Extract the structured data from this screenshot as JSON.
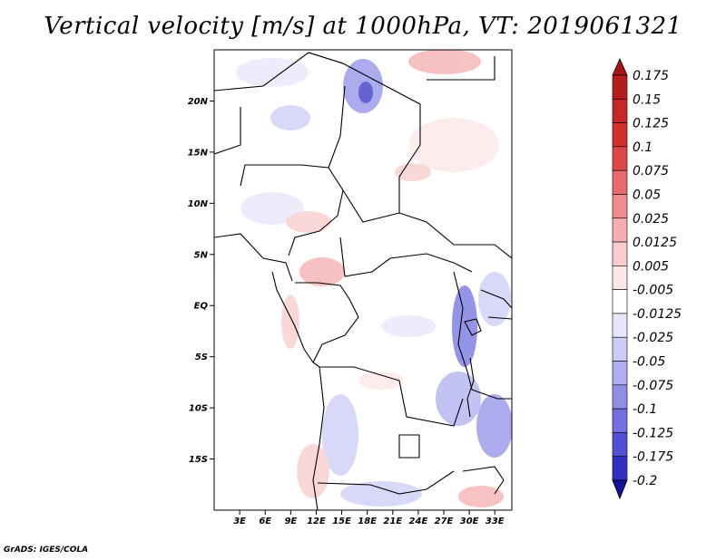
{
  "title": "Vertical velocity [m/s] at 1000hPa, VT: 2019061321",
  "footer": "GrADS: IGES/COLA",
  "map": {
    "lon_range": [
      0,
      35
    ],
    "lat_range": [
      -20,
      25
    ],
    "lat_ticks": [
      {
        "value": 20,
        "label": "20N"
      },
      {
        "value": 15,
        "label": "15N"
      },
      {
        "value": 10,
        "label": "10N"
      },
      {
        "value": 5,
        "label": "5N"
      },
      {
        "value": 0,
        "label": "EQ"
      },
      {
        "value": -5,
        "label": "5S"
      },
      {
        "value": -10,
        "label": "10S"
      },
      {
        "value": -15,
        "label": "15S"
      }
    ],
    "lon_ticks": [
      {
        "value": 3,
        "label": "3E"
      },
      {
        "value": 6,
        "label": "6E"
      },
      {
        "value": 9,
        "label": "9E"
      },
      {
        "value": 12,
        "label": "12E"
      },
      {
        "value": 15,
        "label": "15E"
      },
      {
        "value": 18,
        "label": "18E"
      },
      {
        "value": 21,
        "label": "21E"
      },
      {
        "value": 24,
        "label": "24E"
      },
      {
        "value": 27,
        "label": "27E"
      },
      {
        "value": 30,
        "label": "30E"
      },
      {
        "value": 33,
        "label": "33E"
      }
    ]
  },
  "colorbar": {
    "levels": [
      {
        "label": "0.175",
        "color": "#b71c1c"
      },
      {
        "label": "0.15",
        "color": "#c62828"
      },
      {
        "label": "0.125",
        "color": "#d32f2f"
      },
      {
        "label": "0.1",
        "color": "#e04848"
      },
      {
        "label": "0.075",
        "color": "#e86a6a"
      },
      {
        "label": "0.05",
        "color": "#ef8c8c"
      },
      {
        "label": "0.025",
        "color": "#f5adad"
      },
      {
        "label": "0.0125",
        "color": "#f9cccc"
      },
      {
        "label": "0.005",
        "color": "#fce6e6"
      },
      {
        "label": "-0.005",
        "color": "#ffffff"
      },
      {
        "label": "-0.0125",
        "color": "#e6e6fb"
      },
      {
        "label": "-0.025",
        "color": "#cbcbf6"
      },
      {
        "label": "-0.05",
        "color": "#aeaef0"
      },
      {
        "label": "-0.075",
        "color": "#8f8fe8"
      },
      {
        "label": "-0.1",
        "color": "#7070df"
      },
      {
        "label": "-0.125",
        "color": "#5050d4"
      },
      {
        "label": "-0.175",
        "color": "#3030c4"
      },
      {
        "label": "-0.2",
        "color": "#1d1db0"
      }
    ],
    "top_arrow_color": "#a51515",
    "bottom_arrow_color": "#12129a"
  }
}
